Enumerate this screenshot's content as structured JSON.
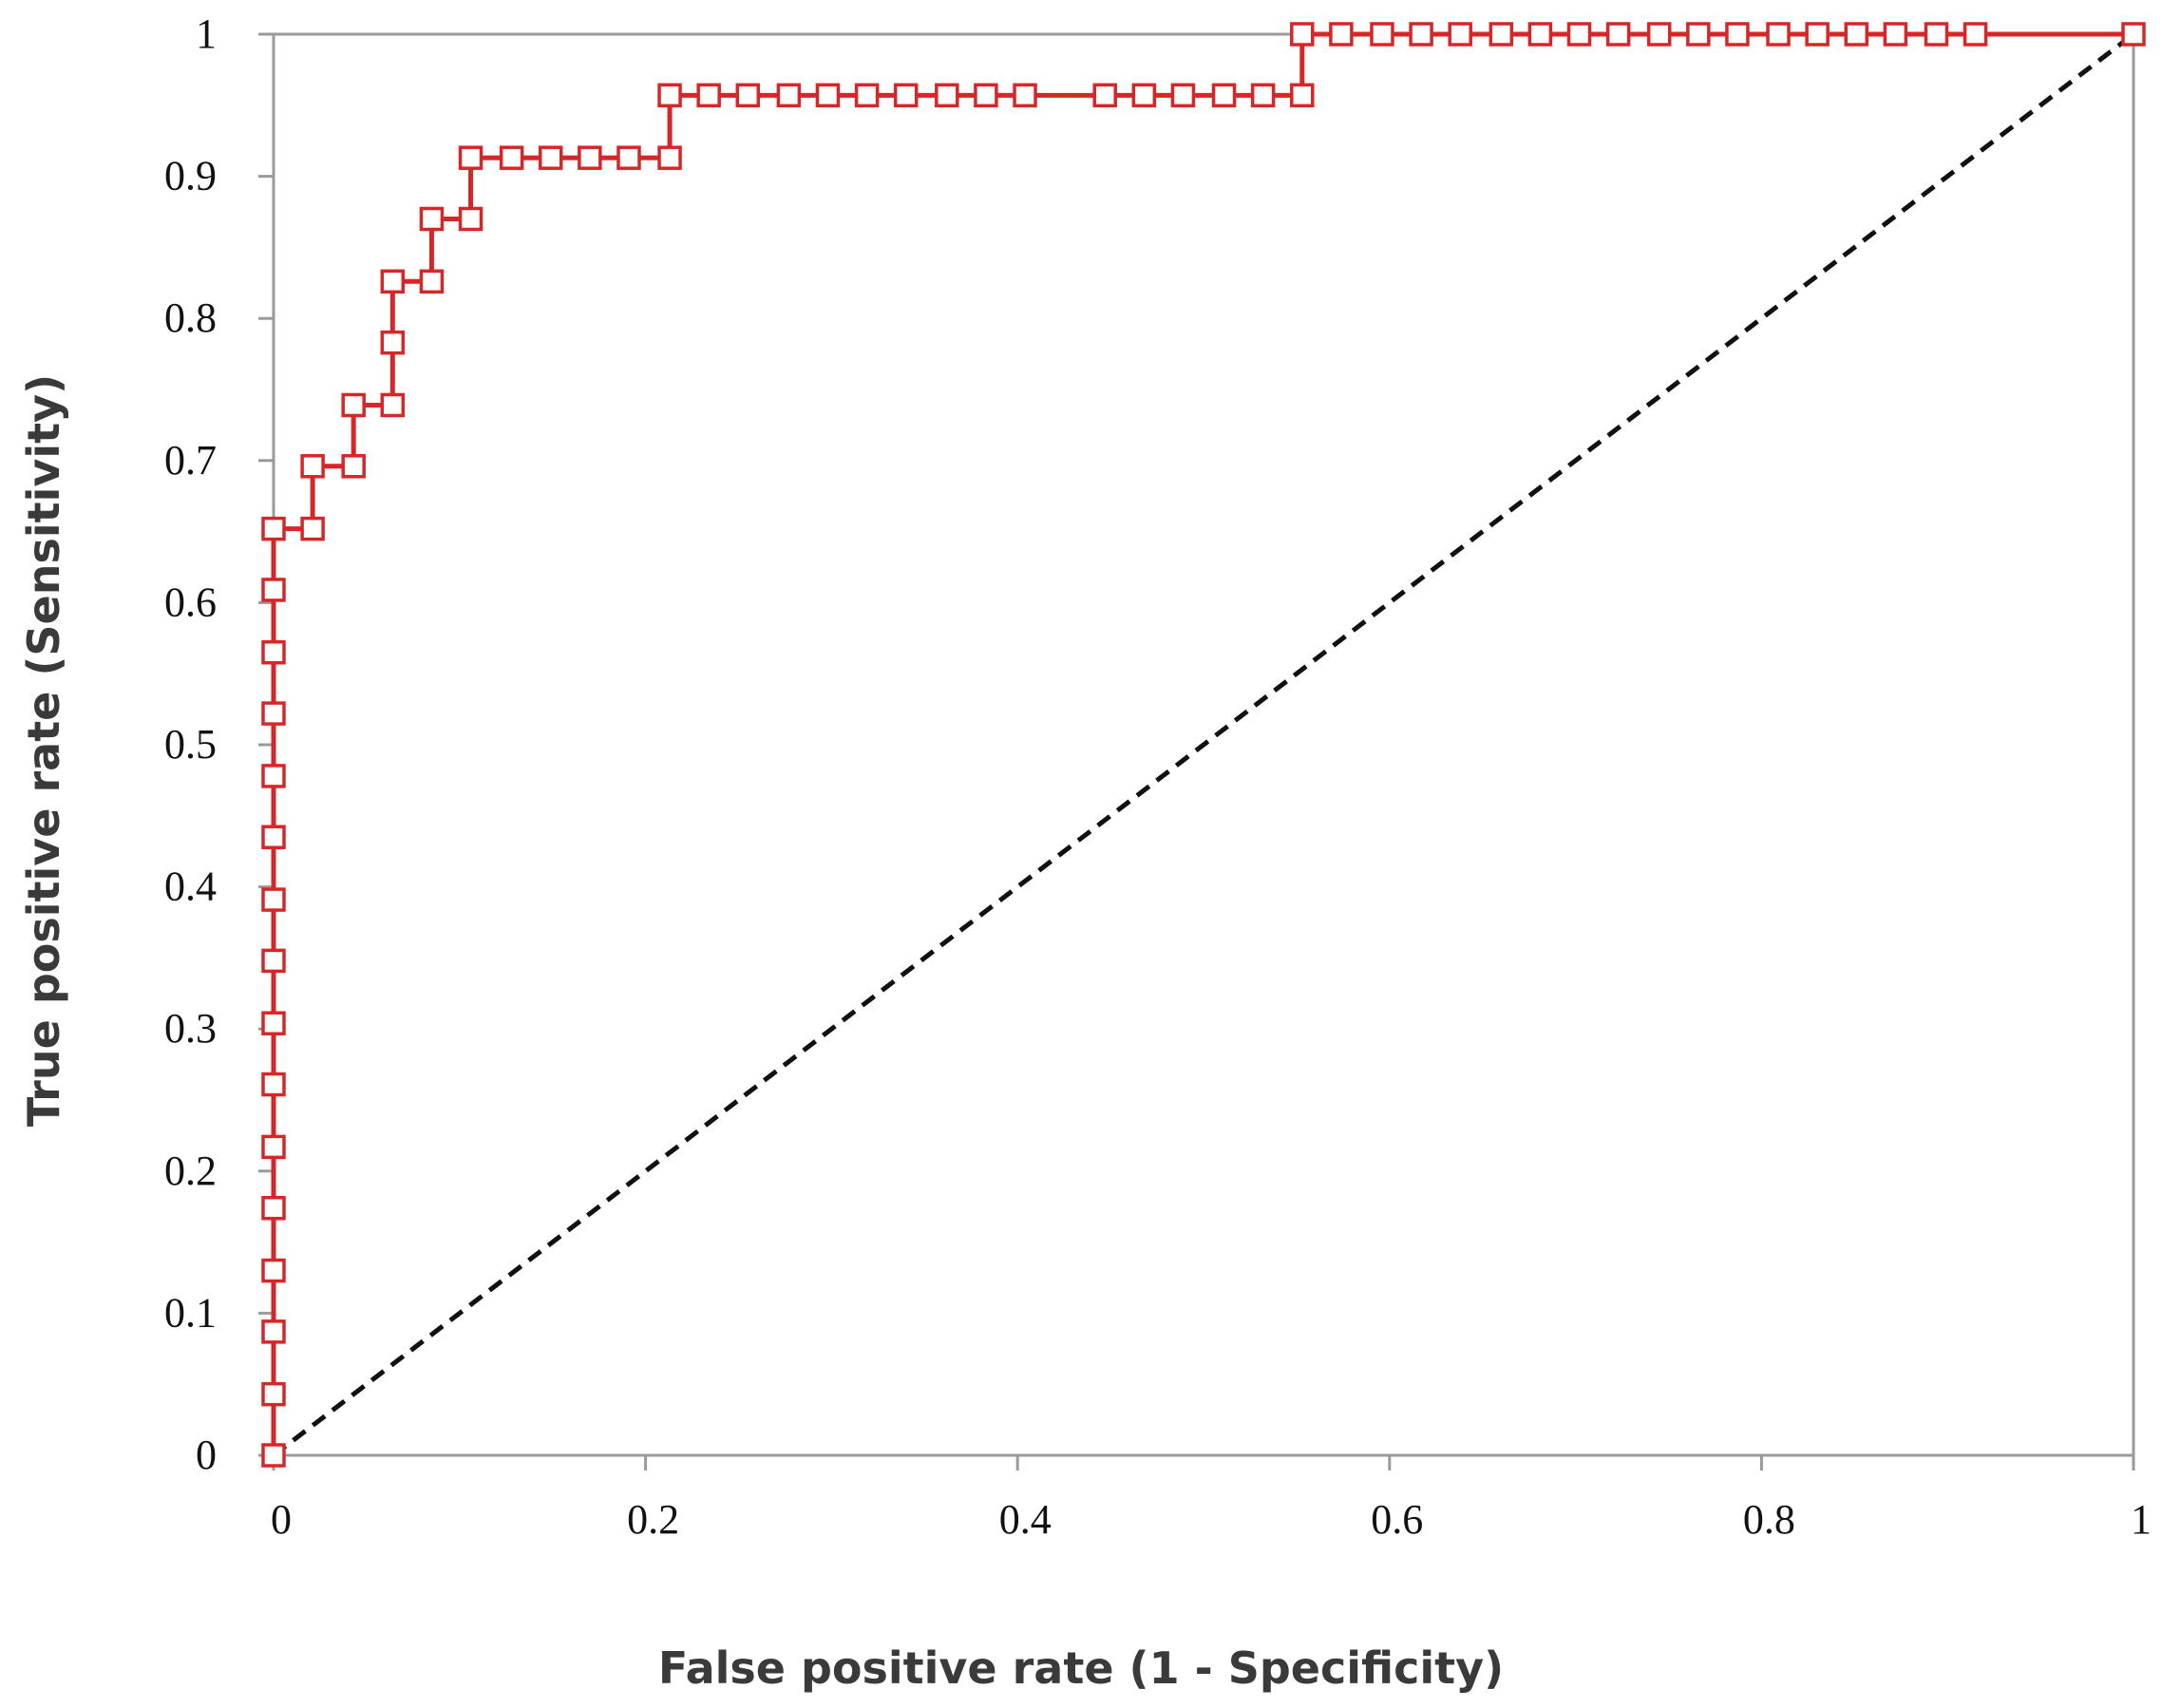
{
  "chart_data": {
    "type": "line",
    "title": "",
    "xlabel": "False positive rate (1 - Specificity)",
    "ylabel": "True positive rate (Sensitivity)",
    "xlim": [
      0,
      1
    ],
    "ylim": [
      0,
      1
    ],
    "x_ticks": [
      {
        "value": 0,
        "label": "0"
      },
      {
        "value": 0.2,
        "label": "0.2"
      },
      {
        "value": 0.4,
        "label": "0.4"
      },
      {
        "value": 0.6,
        "label": "0.6"
      },
      {
        "value": 0.8,
        "label": "0.8"
      },
      {
        "value": 1,
        "label": "1"
      }
    ],
    "y_ticks": [
      {
        "value": 0,
        "label": "0"
      },
      {
        "value": 0.1,
        "label": "0.1"
      },
      {
        "value": 0.2,
        "label": "0.2"
      },
      {
        "value": 0.3,
        "label": "0.3"
      },
      {
        "value": 0.4,
        "label": "0.4"
      },
      {
        "value": 0.5,
        "label": "0.5"
      },
      {
        "value": 0.6,
        "label": "0.6"
      },
      {
        "value": 0.7,
        "label": "0.7"
      },
      {
        "value": 0.8,
        "label": "0.8"
      },
      {
        "value": 0.9,
        "label": "0.9"
      },
      {
        "value": 1,
        "label": "1"
      }
    ],
    "grid": false,
    "colors": {
      "roc": "#d62728",
      "reference": "#111111",
      "axis": "#9a9a9a"
    },
    "series": [
      {
        "marker": "open-square",
        "style": "solid",
        "points": [
          {
            "x": 0,
            "y": 0
          },
          {
            "x": 0,
            "y": 0.043
          },
          {
            "x": 0,
            "y": 0.087
          },
          {
            "x": 0,
            "y": 0.13
          },
          {
            "x": 0,
            "y": 0.174
          },
          {
            "x": 0,
            "y": 0.217
          },
          {
            "x": 0,
            "y": 0.261
          },
          {
            "x": 0,
            "y": 0.304
          },
          {
            "x": 0,
            "y": 0.348
          },
          {
            "x": 0,
            "y": 0.391
          },
          {
            "x": 0,
            "y": 0.435
          },
          {
            "x": 0,
            "y": 0.478
          },
          {
            "x": 0,
            "y": 0.522
          },
          {
            "x": 0,
            "y": 0.565
          },
          {
            "x": 0,
            "y": 0.609
          },
          {
            "x": 0,
            "y": 0.652
          },
          {
            "x": 0.021,
            "y": 0.652
          },
          {
            "x": 0.021,
            "y": 0.696
          },
          {
            "x": 0.043,
            "y": 0.696
          },
          {
            "x": 0.043,
            "y": 0.739
          },
          {
            "x": 0.064,
            "y": 0.739
          },
          {
            "x": 0.064,
            "y": 0.783
          },
          {
            "x": 0.064,
            "y": 0.826
          },
          {
            "x": 0.085,
            "y": 0.826
          },
          {
            "x": 0.085,
            "y": 0.87
          },
          {
            "x": 0.106,
            "y": 0.87
          },
          {
            "x": 0.106,
            "y": 0.913
          },
          {
            "x": 0.128,
            "y": 0.913
          },
          {
            "x": 0.149,
            "y": 0.913
          },
          {
            "x": 0.17,
            "y": 0.913
          },
          {
            "x": 0.191,
            "y": 0.913
          },
          {
            "x": 0.213,
            "y": 0.913
          },
          {
            "x": 0.213,
            "y": 0.957
          },
          {
            "x": 0.234,
            "y": 0.957
          },
          {
            "x": 0.255,
            "y": 0.957
          },
          {
            "x": 0.277,
            "y": 0.957
          },
          {
            "x": 0.298,
            "y": 0.957
          },
          {
            "x": 0.319,
            "y": 0.957
          },
          {
            "x": 0.34,
            "y": 0.957
          },
          {
            "x": 0.362,
            "y": 0.957
          },
          {
            "x": 0.383,
            "y": 0.957
          },
          {
            "x": 0.404,
            "y": 0.957
          },
          {
            "x": 0.447,
            "y": 0.957
          },
          {
            "x": 0.468,
            "y": 0.957
          },
          {
            "x": 0.489,
            "y": 0.957
          },
          {
            "x": 0.511,
            "y": 0.957
          },
          {
            "x": 0.532,
            "y": 0.957
          },
          {
            "x": 0.553,
            "y": 0.957
          },
          {
            "x": 0.553,
            "y": 1
          },
          {
            "x": 0.574,
            "y": 1
          },
          {
            "x": 0.596,
            "y": 1
          },
          {
            "x": 0.617,
            "y": 1
          },
          {
            "x": 0.638,
            "y": 1
          },
          {
            "x": 0.66,
            "y": 1
          },
          {
            "x": 0.681,
            "y": 1
          },
          {
            "x": 0.702,
            "y": 1
          },
          {
            "x": 0.723,
            "y": 1
          },
          {
            "x": 0.745,
            "y": 1
          },
          {
            "x": 0.766,
            "y": 1
          },
          {
            "x": 0.787,
            "y": 1
          },
          {
            "x": 0.809,
            "y": 1
          },
          {
            "x": 0.83,
            "y": 1
          },
          {
            "x": 0.851,
            "y": 1
          },
          {
            "x": 0.872,
            "y": 1
          },
          {
            "x": 0.894,
            "y": 1
          },
          {
            "x": 0.915,
            "y": 1
          },
          {
            "x": 1,
            "y": 1
          }
        ]
      },
      {
        "marker": "none",
        "style": "dashed",
        "points": [
          {
            "x": 0,
            "y": 0
          },
          {
            "x": 1,
            "y": 1
          }
        ]
      }
    ]
  }
}
